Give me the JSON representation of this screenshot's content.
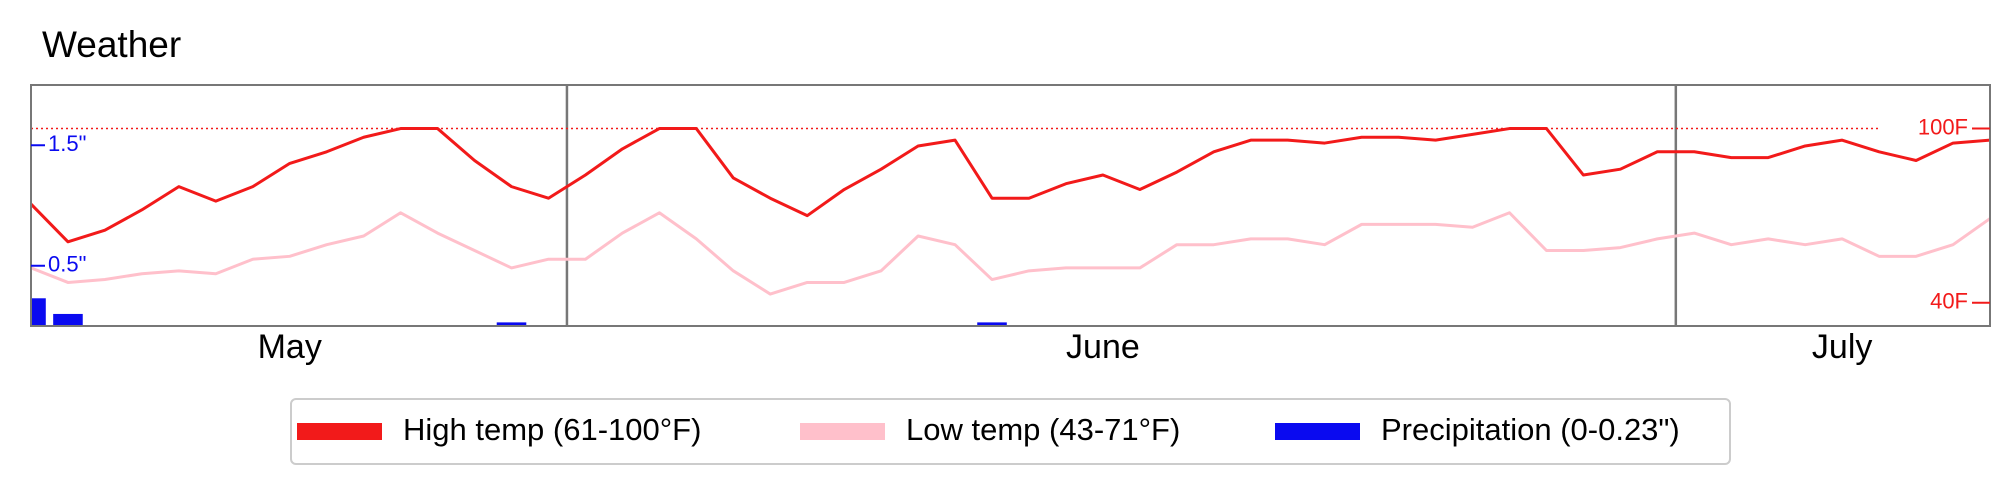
{
  "chart_data": {
    "type": "line",
    "title": "Weather",
    "categories": [
      null,
      null,
      null,
      null,
      null,
      null,
      null,
      "May",
      null,
      null,
      null,
      null,
      null,
      null,
      null,
      null,
      null,
      null,
      null,
      null,
      null,
      null,
      null,
      null,
      null,
      null,
      null,
      null,
      null,
      "June",
      null,
      null,
      null,
      null,
      null,
      null,
      null,
      null,
      null,
      null,
      null,
      null,
      null,
      null,
      null,
      null,
      null,
      null,
      null,
      "July",
      null,
      null,
      null,
      null
    ],
    "month_dividers": [
      14.5,
      44.5
    ],
    "series": [
      {
        "name": "High temp (61-100°F)",
        "color": "#f21a1a",
        "axis": "y",
        "kind": "line",
        "values": [
          74,
          61,
          65,
          72,
          80,
          75,
          80,
          88,
          92,
          97,
          100,
          100,
          89,
          80,
          76,
          84,
          93,
          100,
          100,
          83,
          76,
          70,
          79,
          86,
          94,
          96,
          76,
          76,
          81,
          84,
          79,
          85,
          92,
          96,
          96,
          95,
          97,
          97,
          96,
          98,
          100,
          100,
          84,
          86,
          92,
          92,
          90,
          90,
          94,
          96,
          92,
          89,
          95,
          96
        ]
      },
      {
        "name": "Low temp (43-71°F)",
        "color": "#ffc0cb",
        "axis": "y",
        "kind": "line",
        "values": [
          52,
          47,
          48,
          50,
          51,
          50,
          55,
          56,
          60,
          63,
          71,
          64,
          58,
          52,
          55,
          55,
          64,
          71,
          62,
          51,
          43,
          47,
          47,
          51,
          63,
          60,
          48,
          51,
          52,
          52,
          52,
          60,
          60,
          62,
          62,
          60,
          67,
          67,
          67,
          66,
          71,
          58,
          58,
          59,
          62,
          64,
          60,
          62,
          60,
          62,
          56,
          56,
          60,
          69
        ]
      },
      {
        "name": "Precipitation (0-0.23\")",
        "color": "#0a0af0",
        "axis": "y2",
        "kind": "bar",
        "values": [
          0.23,
          0.1,
          0,
          0,
          0,
          0,
          0,
          0,
          0,
          0,
          0,
          0,
          0,
          0.03,
          0,
          0,
          0,
          0,
          0,
          0,
          0,
          0,
          0,
          0,
          0,
          0,
          0.03,
          0,
          0,
          0,
          0,
          0,
          0,
          0,
          0,
          0,
          0,
          0,
          0,
          0,
          0,
          0,
          0,
          0,
          0,
          0,
          0,
          0,
          0,
          0,
          0,
          0,
          0,
          0
        ]
      }
    ],
    "ylim": [
      32,
      115
    ],
    "yticks": [
      {
        "value": 40,
        "label": "40F"
      },
      {
        "value": 100,
        "label": "100F"
      }
    ],
    "y2lim": [
      0,
      2
    ],
    "y2ticks": [
      {
        "value": 0.5,
        "label": "0.5\""
      },
      {
        "value": 1.5,
        "label": "1.5\""
      }
    ],
    "reference_line": 100
  }
}
